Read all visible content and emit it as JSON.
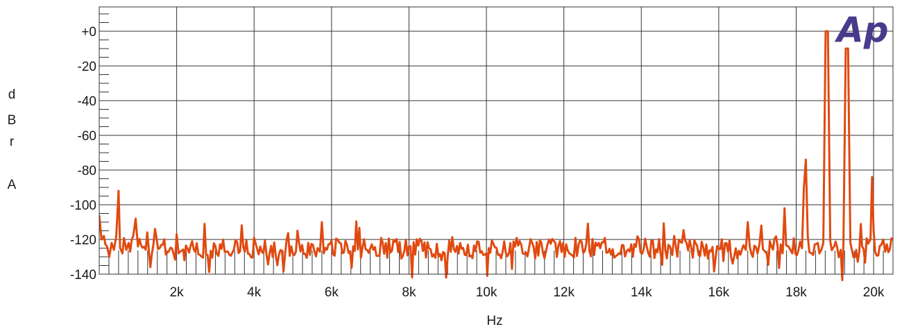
{
  "chart_data": {
    "type": "line",
    "title": "",
    "xlabel": "Hz",
    "ylabel_letters": [
      "d",
      "B",
      "r",
      "",
      "A"
    ],
    "xlim": [
      0,
      20500
    ],
    "ylim": [
      -140,
      14
    ],
    "x_ticks": [
      {
        "value": 2000,
        "label": "2k"
      },
      {
        "value": 4000,
        "label": "4k"
      },
      {
        "value": 6000,
        "label": "6k"
      },
      {
        "value": 8000,
        "label": "8k"
      },
      {
        "value": 10000,
        "label": "10k"
      },
      {
        "value": 12000,
        "label": "12k"
      },
      {
        "value": 14000,
        "label": "14k"
      },
      {
        "value": 16000,
        "label": "16k"
      },
      {
        "value": 18000,
        "label": "18k"
      },
      {
        "value": 20000,
        "label": "20k"
      }
    ],
    "y_ticks": [
      {
        "value": 0,
        "label": "+0"
      },
      {
        "value": -20,
        "label": "-20"
      },
      {
        "value": -40,
        "label": "-40"
      },
      {
        "value": -60,
        "label": "-60"
      },
      {
        "value": -80,
        "label": "-80"
      },
      {
        "value": -100,
        "label": "-100"
      },
      {
        "value": -120,
        "label": "-120"
      },
      {
        "value": -140,
        "label": "-140"
      }
    ],
    "grid": true,
    "series": [
      {
        "color": "#e04a10",
        "noise_floor": -125,
        "x_step_hz": 40,
        "points": [
          [
            0,
            -106
          ],
          [
            60,
            -120
          ],
          [
            120,
            -118
          ],
          [
            200,
            -124
          ],
          [
            260,
            -130
          ],
          [
            320,
            -122
          ],
          [
            380,
            -126
          ],
          [
            440,
            -118
          ],
          [
            500,
            -92
          ],
          [
            540,
            -125
          ],
          [
            600,
            -128
          ],
          [
            700,
            -126
          ],
          [
            760,
            -122
          ],
          [
            800,
            -127
          ],
          [
            880,
            -118
          ],
          [
            940,
            -108
          ],
          [
            1000,
            -124
          ],
          [
            1200,
            -126
          ],
          [
            1400,
            -123
          ],
          [
            1560,
            -125
          ],
          [
            2000,
            -117
          ],
          [
            2050,
            -128
          ],
          [
            2200,
            -132
          ],
          [
            5700,
            -127
          ],
          [
            5750,
            -110
          ],
          [
            5800,
            -128
          ],
          [
            8000,
            -124
          ],
          [
            8960,
            -142
          ],
          [
            9000,
            -130
          ],
          [
            10000,
            -128
          ],
          [
            10020,
            -141
          ],
          [
            10060,
            -125
          ],
          [
            14800,
            -129
          ],
          [
            14850,
            -118
          ],
          [
            15400,
            -122
          ],
          [
            16700,
            -126
          ],
          [
            16750,
            -110
          ],
          [
            16800,
            -124
          ],
          [
            17000,
            -128
          ],
          [
            17050,
            -123
          ],
          [
            17100,
            -112
          ],
          [
            17200,
            -127
          ],
          [
            17650,
            -128
          ],
          [
            17700,
            -102
          ],
          [
            17800,
            -124
          ],
          [
            17900,
            -128
          ],
          [
            18150,
            -125
          ],
          [
            18200,
            -90
          ],
          [
            18250,
            -74
          ],
          [
            18300,
            -118
          ],
          [
            18400,
            -128
          ],
          [
            18600,
            -128
          ],
          [
            18650,
            -126
          ],
          [
            18700,
            -122
          ],
          [
            18760,
            0
          ],
          [
            18820,
            0
          ],
          [
            18880,
            -121
          ],
          [
            18980,
            -124
          ],
          [
            19150,
            -126
          ],
          [
            19220,
            -122
          ],
          [
            19280,
            -10
          ],
          [
            19340,
            -10
          ],
          [
            19400,
            -122
          ],
          [
            19550,
            -126
          ],
          [
            19700,
            -124
          ],
          [
            19920,
            -120
          ],
          [
            19960,
            -84
          ],
          [
            20000,
            -115
          ],
          [
            20040,
            -127
          ],
          [
            20250,
            -120
          ],
          [
            20300,
            -127
          ],
          [
            20500,
            -120
          ]
        ]
      }
    ],
    "logo": "Ap",
    "logo_color": "#4a3a8c"
  }
}
